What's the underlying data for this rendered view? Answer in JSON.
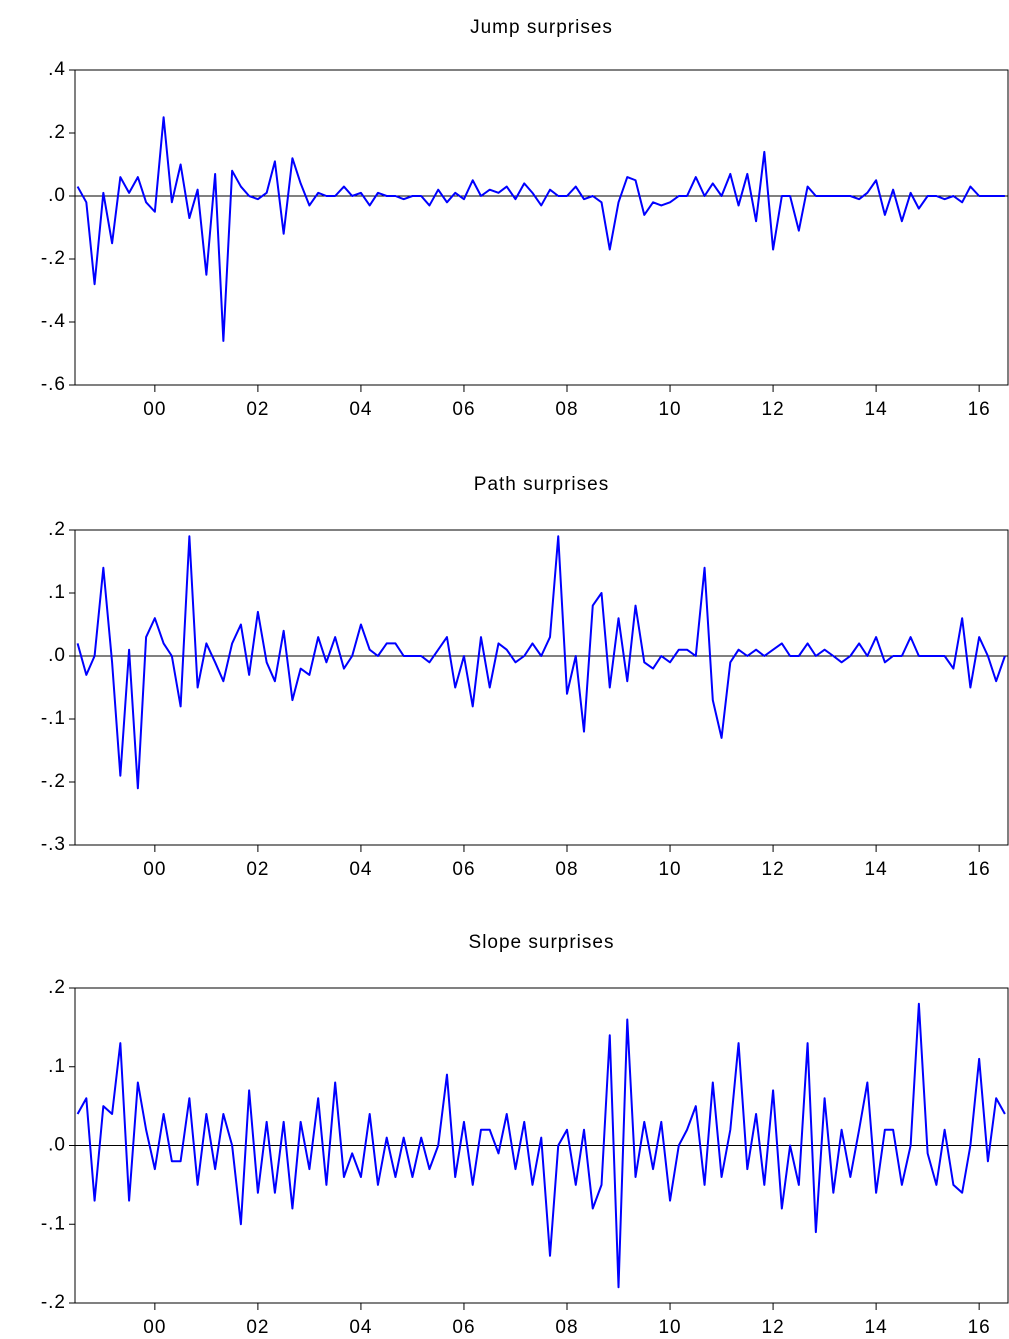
{
  "chart_data": [
    {
      "type": "line",
      "title": "Jump surprises",
      "color": "#0000ff",
      "x": [
        1998.5,
        1998.67,
        1998.83,
        1999,
        1999.17,
        1999.33,
        1999.5,
        1999.67,
        1999.83,
        2000,
        2000.17,
        2000.33,
        2000.5,
        2000.67,
        2000.83,
        2001,
        2001.17,
        2001.33,
        2001.5,
        2001.67,
        2001.83,
        2002,
        2002.17,
        2002.33,
        2002.5,
        2002.67,
        2002.83,
        2003,
        2003.17,
        2003.33,
        2003.5,
        2003.67,
        2003.83,
        2004,
        2004.17,
        2004.33,
        2004.5,
        2004.67,
        2004.83,
        2005,
        2005.17,
        2005.33,
        2005.5,
        2005.67,
        2005.83,
        2006,
        2006.17,
        2006.33,
        2006.5,
        2006.67,
        2006.83,
        2007,
        2007.17,
        2007.33,
        2007.5,
        2007.67,
        2007.83,
        2008,
        2008.17,
        2008.33,
        2008.5,
        2008.67,
        2008.83,
        2009,
        2009.17,
        2009.33,
        2009.5,
        2009.67,
        2009.83,
        2010,
        2010.17,
        2010.33,
        2010.5,
        2010.67,
        2010.83,
        2011,
        2011.17,
        2011.33,
        2011.5,
        2011.67,
        2011.83,
        2012,
        2012.17,
        2012.33,
        2012.5,
        2012.67,
        2012.83,
        2013,
        2013.17,
        2013.33,
        2013.5,
        2013.67,
        2013.83,
        2014,
        2014.17,
        2014.33,
        2014.5,
        2014.67,
        2014.83,
        2015,
        2015.17,
        2015.33,
        2015.5,
        2015.67,
        2015.83,
        2016,
        2016.17,
        2016.33,
        2016.5
      ],
      "values": [
        0.03,
        -0.02,
        -0.28,
        0.01,
        -0.15,
        0.06,
        0.01,
        0.06,
        -0.02,
        -0.05,
        0.25,
        -0.02,
        0.1,
        -0.07,
        0.02,
        -0.25,
        0.07,
        -0.46,
        0.08,
        0.03,
        0,
        -0.01,
        0.01,
        0.11,
        -0.12,
        0.12,
        0.04,
        -0.03,
        0.01,
        0,
        0,
        0.03,
        0,
        0.01,
        -0.03,
        0.01,
        0,
        0,
        -0.01,
        0,
        0,
        -0.03,
        0.02,
        -0.02,
        0.01,
        -0.01,
        0.05,
        0,
        0.02,
        0.01,
        0.03,
        -0.01,
        0.04,
        0.01,
        -0.03,
        0.02,
        0,
        0,
        0.03,
        -0.01,
        0,
        -0.02,
        -0.17,
        -0.02,
        0.06,
        0.05,
        -0.06,
        -0.02,
        -0.03,
        -0.02,
        0,
        0,
        0.06,
        0,
        0.04,
        0,
        0.07,
        -0.03,
        0.07,
        -0.08,
        0.14,
        -0.17,
        0,
        0,
        -0.11,
        0.03,
        0,
        0,
        0,
        0,
        0,
        -0.01,
        0.01,
        0.05,
        -0.06,
        0.02,
        -0.08,
        0.01,
        -0.04,
        0,
        0,
        -0.01,
        0,
        -0.02,
        0.03,
        0,
        0,
        0,
        0
      ],
      "xlim": [
        1998.45,
        2016.56
      ],
      "ylim": [
        -0.6,
        0.4
      ],
      "xticks": [
        {
          "value": 2000,
          "label": "00"
        },
        {
          "value": 2002,
          "label": "02"
        },
        {
          "value": 2004,
          "label": "04"
        },
        {
          "value": 2006,
          "label": "06"
        },
        {
          "value": 2008,
          "label": "08"
        },
        {
          "value": 2010,
          "label": "10"
        },
        {
          "value": 2012,
          "label": "12"
        },
        {
          "value": 2014,
          "label": "14"
        },
        {
          "value": 2016,
          "label": "16"
        }
      ],
      "yticks": [
        {
          "value": 0.4,
          "label": ".4"
        },
        {
          "value": 0.2,
          "label": ".2"
        },
        {
          "value": 0,
          "label": ".0"
        },
        {
          "value": -0.2,
          "label": "-.2"
        },
        {
          "value": -0.4,
          "label": "-.4"
        },
        {
          "value": -0.6,
          "label": "-.6"
        }
      ]
    },
    {
      "type": "line",
      "title": "Path surprises",
      "color": "#0000ff",
      "x": [
        1998.5,
        1998.67,
        1998.83,
        1999,
        1999.17,
        1999.33,
        1999.5,
        1999.67,
        1999.83,
        2000,
        2000.17,
        2000.33,
        2000.5,
        2000.67,
        2000.83,
        2001,
        2001.17,
        2001.33,
        2001.5,
        2001.67,
        2001.83,
        2002,
        2002.17,
        2002.33,
        2002.5,
        2002.67,
        2002.83,
        2003,
        2003.17,
        2003.33,
        2003.5,
        2003.67,
        2003.83,
        2004,
        2004.17,
        2004.33,
        2004.5,
        2004.67,
        2004.83,
        2005,
        2005.17,
        2005.33,
        2005.5,
        2005.67,
        2005.83,
        2006,
        2006.17,
        2006.33,
        2006.5,
        2006.67,
        2006.83,
        2007,
        2007.17,
        2007.33,
        2007.5,
        2007.67,
        2007.83,
        2008,
        2008.17,
        2008.33,
        2008.5,
        2008.67,
        2008.83,
        2009,
        2009.17,
        2009.33,
        2009.5,
        2009.67,
        2009.83,
        2010,
        2010.17,
        2010.33,
        2010.5,
        2010.67,
        2010.83,
        2011,
        2011.17,
        2011.33,
        2011.5,
        2011.67,
        2011.83,
        2012,
        2012.17,
        2012.33,
        2012.5,
        2012.67,
        2012.83,
        2013,
        2013.17,
        2013.33,
        2013.5,
        2013.67,
        2013.83,
        2014,
        2014.17,
        2014.33,
        2014.5,
        2014.67,
        2014.83,
        2015,
        2015.17,
        2015.33,
        2015.5,
        2015.67,
        2015.83,
        2016,
        2016.17,
        2016.33,
        2016.5
      ],
      "values": [
        0.02,
        -0.03,
        0,
        0.14,
        -0.01,
        -0.19,
        0.01,
        -0.21,
        0.03,
        0.06,
        0.02,
        0,
        -0.08,
        0.19,
        -0.05,
        0.02,
        -0.01,
        -0.04,
        0.02,
        0.05,
        -0.03,
        0.07,
        -0.01,
        -0.04,
        0.04,
        -0.07,
        -0.02,
        -0.03,
        0.03,
        -0.01,
        0.03,
        -0.02,
        0,
        0.05,
        0.01,
        0,
        0.02,
        0.02,
        0,
        0,
        0,
        -0.01,
        0.01,
        0.03,
        -0.05,
        0,
        -0.08,
        0.03,
        -0.05,
        0.02,
        0.01,
        -0.01,
        0,
        0.02,
        0,
        0.03,
        0.19,
        -0.06,
        0,
        -0.12,
        0.08,
        0.1,
        -0.05,
        0.06,
        -0.04,
        0.08,
        -0.01,
        -0.02,
        0,
        -0.01,
        0.01,
        0.01,
        0,
        0.14,
        -0.07,
        -0.13,
        -0.01,
        0.01,
        0,
        0.01,
        0,
        0.01,
        0.02,
        0,
        0,
        0.02,
        0,
        0.01,
        0,
        -0.01,
        0,
        0.02,
        0,
        0.03,
        -0.01,
        0,
        0,
        0.03,
        0,
        0,
        0,
        0,
        -0.02,
        0.06,
        -0.05,
        0.03,
        0,
        -0.04,
        0
      ],
      "xlim": [
        1998.45,
        2016.56
      ],
      "ylim": [
        -0.3,
        0.2
      ],
      "xticks": [
        {
          "value": 2000,
          "label": "00"
        },
        {
          "value": 2002,
          "label": "02"
        },
        {
          "value": 2004,
          "label": "04"
        },
        {
          "value": 2006,
          "label": "06"
        },
        {
          "value": 2008,
          "label": "08"
        },
        {
          "value": 2010,
          "label": "10"
        },
        {
          "value": 2012,
          "label": "12"
        },
        {
          "value": 2014,
          "label": "14"
        },
        {
          "value": 2016,
          "label": "16"
        }
      ],
      "yticks": [
        {
          "value": 0.2,
          "label": ".2"
        },
        {
          "value": 0.1,
          "label": ".1"
        },
        {
          "value": 0,
          "label": ".0"
        },
        {
          "value": -0.1,
          "label": "-.1"
        },
        {
          "value": -0.2,
          "label": "-.2"
        },
        {
          "value": -0.3,
          "label": "-.3"
        }
      ]
    },
    {
      "type": "line",
      "title": "Slope surprises",
      "color": "#0000ff",
      "x": [
        1998.5,
        1998.67,
        1998.83,
        1999,
        1999.17,
        1999.33,
        1999.5,
        1999.67,
        1999.83,
        2000,
        2000.17,
        2000.33,
        2000.5,
        2000.67,
        2000.83,
        2001,
        2001.17,
        2001.33,
        2001.5,
        2001.67,
        2001.83,
        2002,
        2002.17,
        2002.33,
        2002.5,
        2002.67,
        2002.83,
        2003,
        2003.17,
        2003.33,
        2003.5,
        2003.67,
        2003.83,
        2004,
        2004.17,
        2004.33,
        2004.5,
        2004.67,
        2004.83,
        2005,
        2005.17,
        2005.33,
        2005.5,
        2005.67,
        2005.83,
        2006,
        2006.17,
        2006.33,
        2006.5,
        2006.67,
        2006.83,
        2007,
        2007.17,
        2007.33,
        2007.5,
        2007.67,
        2007.83,
        2008,
        2008.17,
        2008.33,
        2008.5,
        2008.67,
        2008.83,
        2009,
        2009.17,
        2009.33,
        2009.5,
        2009.67,
        2009.83,
        2010,
        2010.17,
        2010.33,
        2010.5,
        2010.67,
        2010.83,
        2011,
        2011.17,
        2011.33,
        2011.5,
        2011.67,
        2011.83,
        2012,
        2012.17,
        2012.33,
        2012.5,
        2012.67,
        2012.83,
        2013,
        2013.17,
        2013.33,
        2013.5,
        2013.67,
        2013.83,
        2014,
        2014.17,
        2014.33,
        2014.5,
        2014.67,
        2014.83,
        2015,
        2015.17,
        2015.33,
        2015.5,
        2015.67,
        2015.83,
        2016,
        2016.17,
        2016.33,
        2016.5
      ],
      "values": [
        0.04,
        0.06,
        -0.07,
        0.05,
        0.04,
        0.13,
        -0.07,
        0.08,
        0.02,
        -0.03,
        0.04,
        -0.02,
        -0.02,
        0.06,
        -0.05,
        0.04,
        -0.03,
        0.04,
        0,
        -0.1,
        0.07,
        -0.06,
        0.03,
        -0.06,
        0.03,
        -0.08,
        0.03,
        -0.03,
        0.06,
        -0.05,
        0.08,
        -0.04,
        -0.01,
        -0.04,
        0.04,
        -0.05,
        0.01,
        -0.04,
        0.01,
        -0.04,
        0.01,
        -0.03,
        0,
        0.09,
        -0.04,
        0.03,
        -0.05,
        0.02,
        0.02,
        -0.01,
        0.04,
        -0.03,
        0.03,
        -0.05,
        0.01,
        -0.14,
        0,
        0.02,
        -0.05,
        0.02,
        -0.08,
        -0.05,
        0.14,
        -0.18,
        0.16,
        -0.04,
        0.03,
        -0.03,
        0.03,
        -0.07,
        0,
        0.02,
        0.05,
        -0.05,
        0.08,
        -0.04,
        0.02,
        0.13,
        -0.03,
        0.04,
        -0.05,
        0.07,
        -0.08,
        0,
        -0.05,
        0.13,
        -0.11,
        0.06,
        -0.06,
        0.02,
        -0.04,
        0.02,
        0.08,
        -0.06,
        0.02,
        0.02,
        -0.05,
        0,
        0.18,
        -0.01,
        -0.05,
        0.02,
        -0.05,
        -0.06,
        0,
        0.11,
        -0.02,
        0.06,
        0.04
      ],
      "xlim": [
        1998.45,
        2016.56
      ],
      "ylim": [
        -0.2,
        0.2
      ],
      "xticks": [
        {
          "value": 2000,
          "label": "00"
        },
        {
          "value": 2002,
          "label": "02"
        },
        {
          "value": 2004,
          "label": "04"
        },
        {
          "value": 2006,
          "label": "06"
        },
        {
          "value": 2008,
          "label": "08"
        },
        {
          "value": 2010,
          "label": "10"
        },
        {
          "value": 2012,
          "label": "12"
        },
        {
          "value": 2014,
          "label": "14"
        },
        {
          "value": 2016,
          "label": "16"
        }
      ],
      "yticks": [
        {
          "value": 0.2,
          "label": ".2"
        },
        {
          "value": 0.1,
          "label": ".1"
        },
        {
          "value": 0,
          "label": ".0"
        },
        {
          "value": -0.1,
          "label": "-.1"
        },
        {
          "value": -0.2,
          "label": "-.2"
        }
      ]
    }
  ]
}
